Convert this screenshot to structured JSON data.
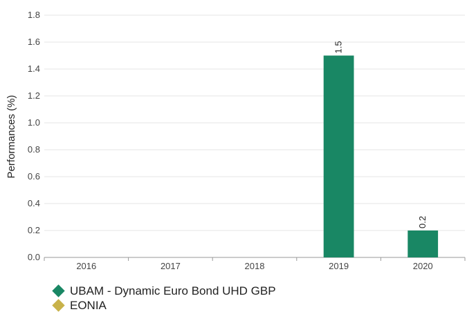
{
  "chart_data": {
    "type": "bar",
    "categories": [
      "2016",
      "2017",
      "2018",
      "2019",
      "2020"
    ],
    "series": [
      {
        "name": "UBAM - Dynamic Euro Bond UHD GBP",
        "color": "#198764",
        "values": [
          null,
          null,
          null,
          1.5,
          0.2
        ],
        "data_labels": [
          "",
          "",
          "",
          "1.5",
          "0.2"
        ]
      },
      {
        "name": "EONIA",
        "color": "#c8b24a",
        "values": [
          null,
          null,
          null,
          null,
          null
        ],
        "data_labels": [
          "",
          "",
          "",
          "",
          ""
        ]
      }
    ],
    "title": "",
    "xlabel": "",
    "ylabel": "Performances (%)",
    "ylim": [
      0,
      1.8
    ],
    "yticks": [
      "0.0",
      "0.2",
      "0.4",
      "0.6",
      "0.8",
      "1.0",
      "1.2",
      "1.4",
      "1.6",
      "1.8"
    ],
    "grid": true,
    "legend_position": "bottom-left"
  }
}
